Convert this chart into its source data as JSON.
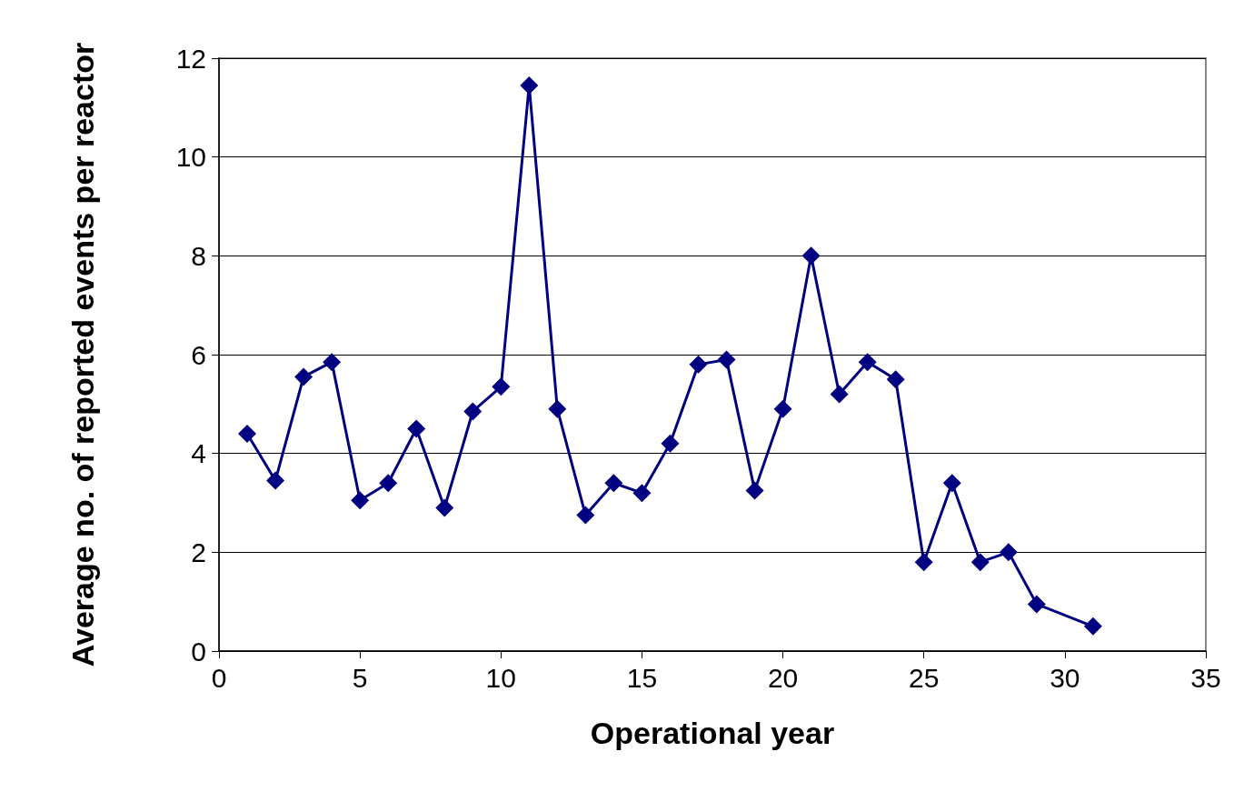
{
  "chart_data": {
    "type": "line",
    "xlabel": "Operational year",
    "ylabel": "Average no. of reported events per reactor",
    "x": [
      1,
      2,
      3,
      4,
      5,
      6,
      7,
      8,
      9,
      10,
      11,
      12,
      13,
      14,
      15,
      16,
      17,
      18,
      19,
      20,
      21,
      22,
      23,
      24,
      25,
      26,
      27,
      28,
      29,
      31
    ],
    "series": [
      {
        "color": "#000080",
        "values": [
          4.4,
          3.45,
          5.55,
          5.85,
          3.05,
          3.4,
          4.5,
          2.9,
          4.85,
          5.35,
          11.45,
          4.9,
          2.75,
          3.4,
          3.2,
          4.2,
          5.8,
          5.9,
          3.25,
          4.9,
          8.0,
          5.2,
          5.85,
          5.5,
          1.8,
          3.4,
          1.8,
          2.0,
          0.95,
          0.5
        ]
      }
    ],
    "xlim": [
      0,
      35
    ],
    "xticks": [
      0,
      5,
      10,
      15,
      20,
      25,
      30,
      35
    ],
    "ylim": [
      0,
      12
    ],
    "yticks": [
      0,
      2,
      4,
      6,
      8,
      10,
      12
    ],
    "grid": "y",
    "marker": "diamond",
    "line_style": "solid"
  }
}
